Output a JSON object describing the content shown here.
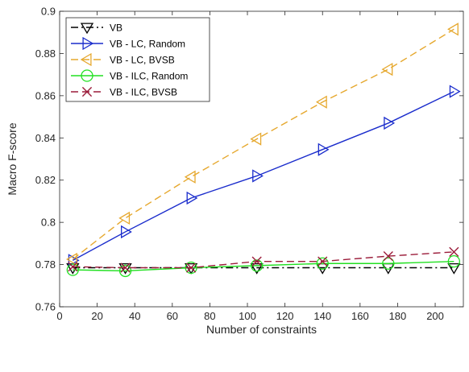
{
  "chart_data": {
    "type": "line",
    "title": "",
    "xlabel": "Number of constraints",
    "ylabel": "Macro F-score",
    "xlim": [
      0,
      215
    ],
    "ylim": [
      0.76,
      0.9
    ],
    "xticks": [
      0,
      20,
      40,
      60,
      80,
      100,
      120,
      140,
      160,
      180,
      200
    ],
    "yticks": [
      0.76,
      0.78,
      0.8,
      0.82,
      0.84,
      0.86,
      0.88,
      0.9
    ],
    "xtick_labels": [
      "0",
      "20",
      "40",
      "60",
      "80",
      "100",
      "120",
      "140",
      "160",
      "180",
      "200"
    ],
    "ytick_labels": [
      "0.76",
      "0.78",
      "0.8",
      "0.82",
      "0.84",
      "0.86",
      "0.88",
      "0.9"
    ],
    "x": [
      7,
      35,
      70,
      105,
      140,
      175,
      210
    ],
    "grid": false,
    "legend_position": "top-left",
    "series": [
      {
        "name": "VB",
        "color": "#000000",
        "line": "dashdot",
        "marker": "triangle-down",
        "values": [
          0.7785,
          0.7785,
          0.7785,
          0.7785,
          0.7785,
          0.7785,
          0.7785
        ]
      },
      {
        "name": "VB - LC, Random",
        "color": "#1a2ccc",
        "line": "solid",
        "marker": "triangle-right",
        "values": [
          0.782,
          0.7955,
          0.8115,
          0.822,
          0.8345,
          0.847,
          0.862
        ]
      },
      {
        "name": "VB - LC, BVSB",
        "color": "#e6a82e",
        "line": "dashed",
        "marker": "triangle-left",
        "values": [
          0.7825,
          0.802,
          0.8215,
          0.8395,
          0.857,
          0.8725,
          0.8915
        ]
      },
      {
        "name": "VB - ILC, Random",
        "color": "#22e022",
        "line": "solid",
        "marker": "circle",
        "values": [
          0.7775,
          0.777,
          0.7785,
          0.7795,
          0.7805,
          0.7805,
          0.7815
        ]
      },
      {
        "name": "VB - ILC, BVSB",
        "color": "#9b1c3a",
        "line": "dashed",
        "marker": "x",
        "values": [
          0.779,
          0.7785,
          0.7785,
          0.7815,
          0.7815,
          0.784,
          0.786
        ]
      }
    ]
  }
}
